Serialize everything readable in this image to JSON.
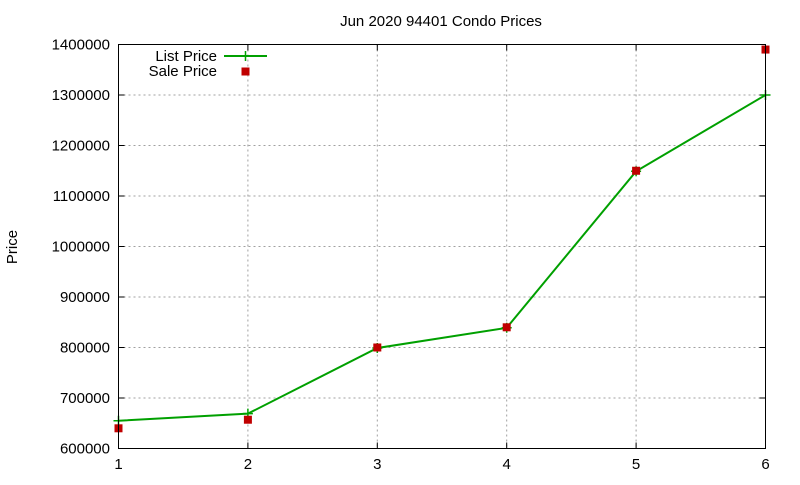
{
  "chart_data": {
    "type": "line",
    "title": "Jun 2020 94401 Condo Prices",
    "xlabel": "",
    "ylabel": "Price",
    "x": [
      1,
      2,
      3,
      4,
      5,
      6
    ],
    "xlim": [
      1,
      6
    ],
    "ylim": [
      600000,
      1400000
    ],
    "xticks": [
      "1",
      "2",
      "3",
      "4",
      "5",
      "6"
    ],
    "yticks": [
      "600000",
      "700000",
      "800000",
      "900000",
      "1000000",
      "1100000",
      "1200000",
      "1300000",
      "1400000"
    ],
    "grid": true,
    "legend_position": "top-left",
    "series": [
      {
        "name": "List Price",
        "style": "line-with-plus-markers",
        "color": "#00a000",
        "values": [
          655000,
          669000,
          799000,
          839000,
          1149000,
          1300000
        ]
      },
      {
        "name": "Sale Price",
        "style": "square-markers",
        "color": "#c00000",
        "values": [
          640000,
          657000,
          800000,
          840000,
          1150000,
          1390000
        ]
      }
    ]
  }
}
